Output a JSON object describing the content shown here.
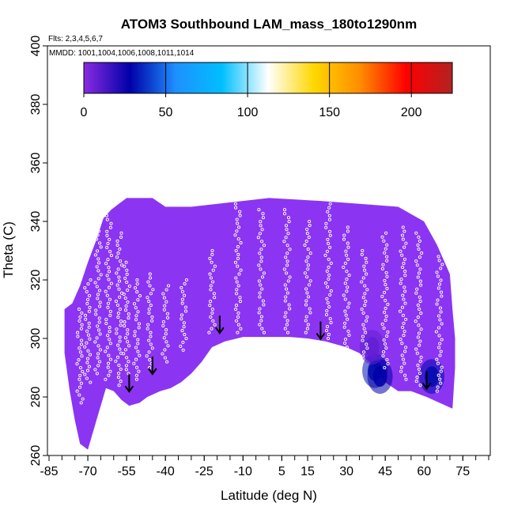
{
  "chart_data": {
    "type": "heatmap",
    "title": "ATOM3 Southbound LAM_mass_180to1290nm",
    "flights_note": "Flts: 2,3,4,5,6,7",
    "dates_note": "MMDD: 1001,1004,1006,1008,1011,1014",
    "xlabel": "Latitude (deg N)",
    "ylabel": "Theta (C)",
    "xlim": [
      -85,
      85
    ],
    "ylim": [
      260,
      400
    ],
    "x_ticks": [
      -85,
      -70,
      -55,
      -40,
      -25,
      -10,
      5,
      15,
      30,
      45,
      60,
      75
    ],
    "x_minor_step": 5,
    "y_ticks": [
      260,
      280,
      300,
      320,
      340,
      360,
      380,
      400
    ],
    "colorbar": {
      "min": 0,
      "max": 225,
      "ticks": [
        0,
        50,
        100,
        150,
        200
      ],
      "colors": [
        "#8a2be2",
        "#0000a8",
        "#1e90ff",
        "#00bfff",
        "#ffffff",
        "#ffd700",
        "#ff8c00",
        "#ff0000",
        "#b22222"
      ]
    },
    "background_value": 0,
    "field_color": "#8b35f2",
    "outline": [
      [
        -79,
        310
      ],
      [
        -76,
        312
      ],
      [
        -73,
        318
      ],
      [
        -70,
        326
      ],
      [
        -67,
        333
      ],
      [
        -64,
        341
      ],
      [
        -61,
        344
      ],
      [
        -58,
        346
      ],
      [
        -55,
        348
      ],
      [
        -45,
        348
      ],
      [
        -40,
        345
      ],
      [
        -30,
        345
      ],
      [
        -10,
        347
      ],
      [
        0,
        348
      ],
      [
        20,
        347
      ],
      [
        35,
        346
      ],
      [
        50,
        345
      ],
      [
        60,
        340
      ],
      [
        65,
        332
      ],
      [
        70,
        322
      ],
      [
        71,
        310
      ],
      [
        72,
        300
      ],
      [
        72,
        290
      ],
      [
        71,
        276
      ],
      [
        66,
        278
      ],
      [
        61,
        280
      ],
      [
        55,
        282
      ],
      [
        50,
        282
      ],
      [
        45,
        285
      ],
      [
        40,
        291
      ],
      [
        35,
        295
      ],
      [
        30,
        297
      ],
      [
        22,
        299
      ],
      [
        15,
        300
      ],
      [
        8,
        300.5
      ],
      [
        0,
        300.5
      ],
      [
        -10,
        300.5
      ],
      [
        -17,
        299
      ],
      [
        -22,
        297
      ],
      [
        -26,
        292
      ],
      [
        -30,
        288
      ],
      [
        -34,
        285
      ],
      [
        -38,
        283
      ],
      [
        -42,
        282
      ],
      [
        -47,
        280
      ],
      [
        -50,
        278
      ],
      [
        -54,
        277
      ],
      [
        -57,
        279
      ],
      [
        -60,
        282
      ],
      [
        -63,
        283
      ],
      [
        -66,
        274
      ],
      [
        -68,
        268
      ],
      [
        -70,
        262
      ],
      [
        -73,
        264
      ],
      [
        -75,
        272
      ],
      [
        -77,
        282
      ],
      [
        -79,
        295
      ]
    ],
    "high_regions": [
      {
        "lat": 41,
        "theta": 289,
        "value": 32
      },
      {
        "lat": 43,
        "theta": 287,
        "value": 28
      },
      {
        "lat": 63,
        "theta": 287,
        "value": 30
      },
      {
        "lat": 40,
        "theta": 297,
        "value": 8
      }
    ],
    "arrows": [
      {
        "lat": -54,
        "theta": 284
      },
      {
        "lat": -45,
        "theta": 290
      },
      {
        "lat": -19,
        "theta": 304
      },
      {
        "lat": 20,
        "theta": 302
      },
      {
        "lat": 61,
        "theta": 285
      }
    ],
    "sample_tracks": [
      {
        "lat": -73,
        "theta_start": 278,
        "theta_end": 310
      },
      {
        "lat": -70,
        "theta_start": 285,
        "theta_end": 320
      },
      {
        "lat": -66,
        "theta_start": 288,
        "theta_end": 338
      },
      {
        "lat": -62,
        "theta_start": 286,
        "theta_end": 342
      },
      {
        "lat": -58,
        "theta_start": 284,
        "theta_end": 336
      },
      {
        "lat": -55,
        "theta_start": 288,
        "theta_end": 326
      },
      {
        "lat": -51,
        "theta_start": 286,
        "theta_end": 320
      },
      {
        "lat": -46,
        "theta_start": 290,
        "theta_end": 322
      },
      {
        "lat": -40,
        "theta_start": 292,
        "theta_end": 318
      },
      {
        "lat": -33,
        "theta_start": 296,
        "theta_end": 320
      },
      {
        "lat": -22,
        "theta_start": 302,
        "theta_end": 330
      },
      {
        "lat": -12,
        "theta_start": 302,
        "theta_end": 346
      },
      {
        "lat": -3,
        "theta_start": 302,
        "theta_end": 344
      },
      {
        "lat": 7,
        "theta_start": 302,
        "theta_end": 344
      },
      {
        "lat": 15,
        "theta_start": 302,
        "theta_end": 340
      },
      {
        "lat": 23,
        "theta_start": 300,
        "theta_end": 346
      },
      {
        "lat": 30,
        "theta_start": 297,
        "theta_end": 338
      },
      {
        "lat": 37,
        "theta_start": 294,
        "theta_end": 330
      },
      {
        "lat": 45,
        "theta_start": 290,
        "theta_end": 336
      },
      {
        "lat": 52,
        "theta_start": 286,
        "theta_end": 338
      },
      {
        "lat": 58,
        "theta_start": 284,
        "theta_end": 336
      },
      {
        "lat": 66,
        "theta_start": 282,
        "theta_end": 328
      }
    ]
  }
}
